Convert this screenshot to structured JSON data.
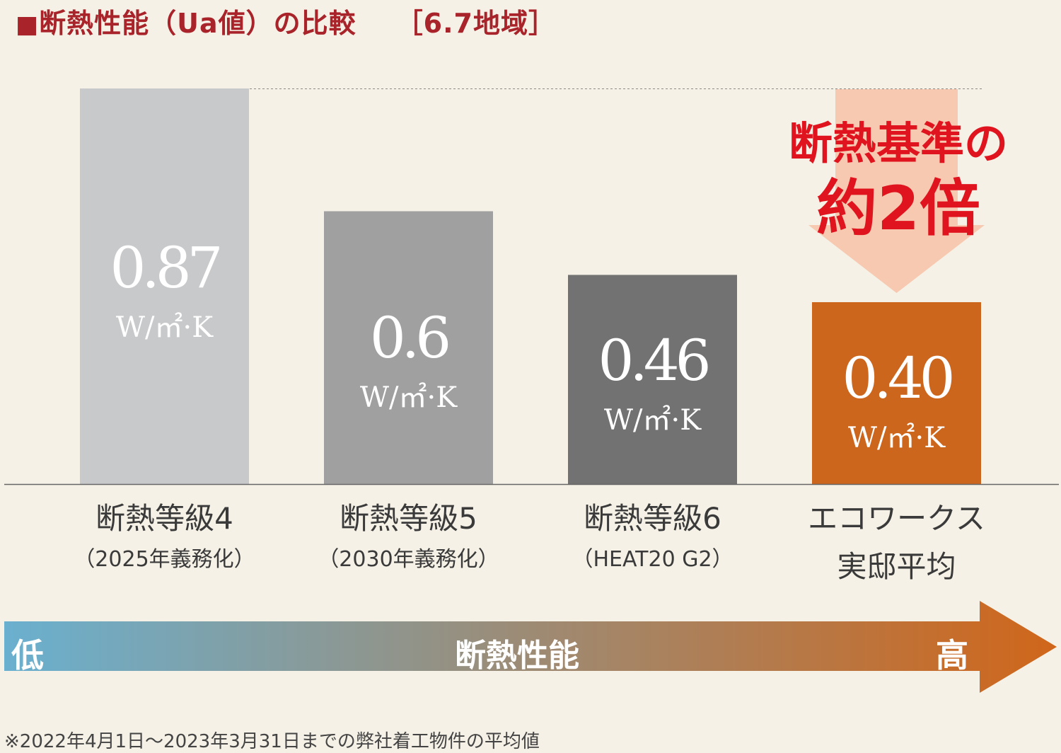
{
  "header": {
    "square_mark": "■",
    "title": "断熱性能（Ua値）の比較",
    "region": "［6.7地域］"
  },
  "chart_data": {
    "type": "bar",
    "categories": [
      {
        "line1": "断熱等級4",
        "line2": "（2025年義務化）"
      },
      {
        "line1": "断熱等級5",
        "line2": "（2030年義務化）"
      },
      {
        "line1": "断熱等級6",
        "line2": "（HEAT20 G2）"
      },
      {
        "line1": "エコワークス",
        "line2": "実邸平均"
      }
    ],
    "values": [
      0.87,
      0.6,
      0.46,
      0.4
    ],
    "value_labels": [
      "0.87",
      "0.6",
      "0.46",
      "0.40"
    ],
    "unit": "W/㎡·K",
    "colors": [
      "#c8c9cb",
      "#a0a0a0",
      "#727272",
      "#cd661d"
    ],
    "ylim": [
      0,
      0.87
    ],
    "grid": false,
    "callout": {
      "line1": "断熱基準の",
      "line2": "約2倍",
      "color": "#e0141e",
      "arrow_color": "#f6c9b0"
    }
  },
  "performance_axis": {
    "low": "低",
    "label": "断熱性能",
    "high": "高",
    "color_start": "#6ab0cf",
    "color_end": "#d0661a"
  },
  "footnote": "※2022年4月1日～2023年3月31日までの弊社着工物件の平均値"
}
